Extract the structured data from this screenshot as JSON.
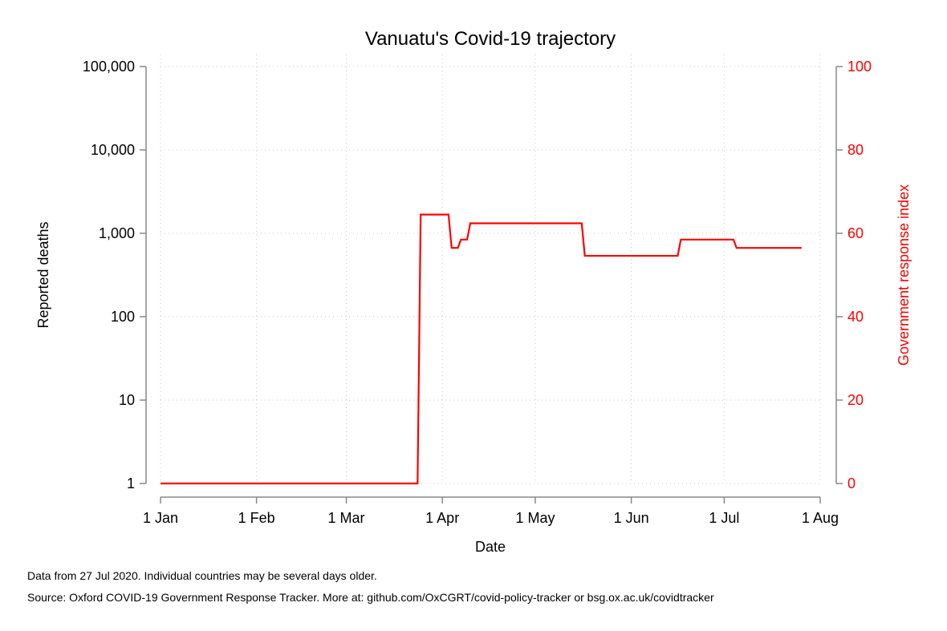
{
  "chart_data": {
    "type": "line",
    "title": "Vanuatu's Covid-19 trajectory",
    "xlabel": "Date",
    "ylabel": "Reported deaths",
    "y2label": "Government response index",
    "x_ticks": [
      {
        "date": "2020-01-01",
        "label": "1 Jan"
      },
      {
        "date": "2020-02-01",
        "label": "1 Feb"
      },
      {
        "date": "2020-03-01",
        "label": "1 Mar"
      },
      {
        "date": "2020-04-01",
        "label": "1 Apr"
      },
      {
        "date": "2020-05-01",
        "label": "1 May"
      },
      {
        "date": "2020-06-01",
        "label": "1 Jun"
      },
      {
        "date": "2020-07-01",
        "label": "1 Jul"
      },
      {
        "date": "2020-08-01",
        "label": "1 Aug"
      }
    ],
    "xlim": [
      "2020-01-01",
      "2020-08-01"
    ],
    "y_scale": "log",
    "ylim": [
      1,
      100000
    ],
    "y_ticks": [
      {
        "value": 1,
        "label": "1"
      },
      {
        "value": 10,
        "label": "10"
      },
      {
        "value": 100,
        "label": "100"
      },
      {
        "value": 1000,
        "label": "1,000"
      },
      {
        "value": 10000,
        "label": "10,000"
      },
      {
        "value": 100000,
        "label": "100,000"
      }
    ],
    "y2lim": [
      0,
      100
    ],
    "y2_ticks": [
      {
        "value": 0,
        "label": "0"
      },
      {
        "value": 20,
        "label": "20"
      },
      {
        "value": 40,
        "label": "40"
      },
      {
        "value": 60,
        "label": "60"
      },
      {
        "value": 80,
        "label": "80"
      },
      {
        "value": 100,
        "label": "100"
      }
    ],
    "grid": true,
    "series": [
      {
        "axis": "y2",
        "color": "#ff0000",
        "step": true,
        "points": [
          [
            "2020-01-01",
            0
          ],
          [
            "2020-03-24",
            0
          ],
          [
            "2020-03-25",
            64.5
          ],
          [
            "2020-04-03",
            64.5
          ],
          [
            "2020-04-04",
            56.5
          ],
          [
            "2020-04-06",
            56.5
          ],
          [
            "2020-04-07",
            58.5
          ],
          [
            "2020-04-09",
            58.5
          ],
          [
            "2020-04-10",
            62.4
          ],
          [
            "2020-05-16",
            62.4
          ],
          [
            "2020-05-17",
            54.6
          ],
          [
            "2020-06-16",
            54.6
          ],
          [
            "2020-06-17",
            58.5
          ],
          [
            "2020-07-04",
            58.5
          ],
          [
            "2020-07-05",
            56.5
          ],
          [
            "2020-07-26",
            56.5
          ]
        ]
      }
    ]
  },
  "notes": {
    "data_note": "Data from 27 Jul 2020. Individual countries may be several days older.",
    "source_note": "Source: Oxford COVID-19 Government Response Tracker. More at: github.com/OxCGRT/covid-policy-tracker or bsg.ox.ac.uk/covidtracker"
  }
}
